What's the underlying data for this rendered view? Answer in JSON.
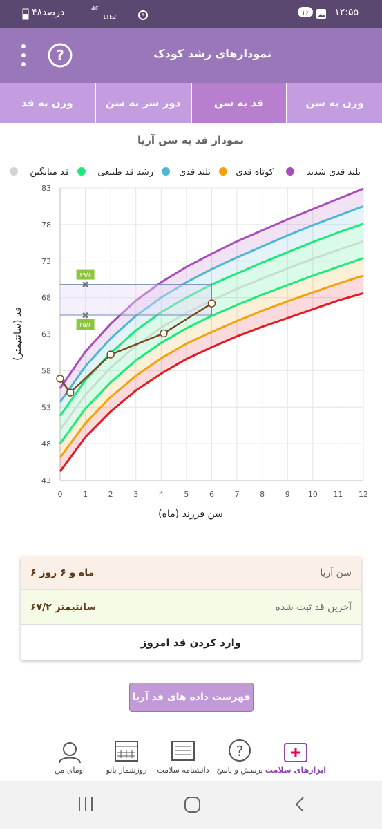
{
  "status_bar": {
    "time": "۱۲:۵۵",
    "badge": "۱۶",
    "battery": "۴۸درصد",
    "network": "4G",
    "lte": "LTE2"
  },
  "app_bar": {
    "title": "نمودارهای رشد کودک"
  },
  "tabs": [
    "وزن به سن",
    "قد به سن",
    "دور سر به سن",
    "وزن به قد"
  ],
  "chart_data": {
    "type": "line",
    "title": "نمودار قد به سن آریا",
    "legend": [
      {
        "name": "بلند قدی شدید",
        "color": "#a74fb9"
      },
      {
        "name": "کوتاه قدی",
        "color": "#f0a30a"
      },
      {
        "name": "بلند قدی",
        "color": "#4fb6d2"
      },
      {
        "name": "رشد قد طبیعی",
        "color": "#1de87a"
      },
      {
        "name": "قد میانگین",
        "color": "#d4d4d4"
      }
    ],
    "x_label": "سن فرزند (ماه)",
    "y_label": "قد (سانتیمتر)",
    "x": [
      0,
      1,
      2,
      3,
      4,
      5,
      6,
      7,
      8,
      9,
      10,
      11,
      12
    ],
    "series": [
      {
        "color": "#e31b23",
        "values": [
          44.2,
          48.9,
          52.4,
          55.3,
          57.6,
          59.6,
          61.2,
          62.7,
          64.0,
          65.2,
          66.4,
          67.6,
          68.6
        ]
      },
      {
        "color": "#f0a30a",
        "values": [
          46.1,
          50.8,
          54.4,
          57.3,
          59.7,
          61.7,
          63.3,
          64.8,
          66.2,
          67.5,
          68.7,
          69.9,
          71.0
        ]
      },
      {
        "color": "#1de87a",
        "values": [
          48.0,
          52.8,
          56.4,
          59.4,
          61.8,
          63.8,
          65.5,
          67.0,
          68.4,
          69.7,
          71.0,
          72.2,
          73.4
        ]
      },
      {
        "color": "#c9dcd0",
        "values": [
          49.9,
          54.7,
          58.4,
          61.4,
          63.9,
          65.9,
          67.6,
          69.2,
          70.6,
          72.0,
          73.3,
          74.5,
          75.7
        ]
      },
      {
        "color": "#1de87a",
        "values": [
          51.8,
          56.7,
          60.4,
          63.5,
          66.0,
          68.0,
          69.8,
          71.3,
          72.8,
          74.2,
          75.6,
          76.9,
          78.1
        ]
      },
      {
        "color": "#4fb6d2",
        "values": [
          53.7,
          58.6,
          62.4,
          65.5,
          68.0,
          70.1,
          71.9,
          73.5,
          75.0,
          76.5,
          77.9,
          79.2,
          80.5
        ]
      },
      {
        "color": "#a74fb9",
        "values": [
          55.6,
          60.6,
          64.4,
          67.6,
          70.1,
          72.2,
          74.0,
          75.7,
          77.2,
          78.7,
          80.1,
          81.5,
          82.9
        ]
      }
    ],
    "measurements": {
      "color": "#7a4a1f",
      "x": [
        0,
        0.4,
        2,
        4.1,
        6
      ],
      "values": [
        56.9,
        55.0,
        60.2,
        63.1,
        67.2
      ]
    },
    "annotations": [
      {
        "x": 1,
        "value": 69.8,
        "label": "۶۹/۸"
      },
      {
        "x": 1,
        "value": 65.6,
        "label": "۶۵/۶"
      }
    ],
    "xlim": [
      0,
      12
    ],
    "xticks": [
      0,
      1,
      2,
      3,
      4,
      5,
      6,
      7,
      8,
      9,
      10,
      11,
      12
    ],
    "ylim": [
      43,
      83
    ],
    "yticks": [
      43,
      48,
      53,
      58,
      63,
      68,
      73,
      78,
      83
    ],
    "grid": true
  },
  "card": {
    "age_label": "سن آریا",
    "age_value": "۶ ماه و ۶ روز",
    "height_label": "آخرین قد ثبت شده",
    "height_value": "۶۷/۲ سانتیمتر",
    "action": "وارد کردن قد امروز"
  },
  "list_button": "فهرست داده های قد آریا",
  "bottom_nav": [
    "ابزارهای سلامت",
    "پرسش و پاسخ",
    "دانشنامه سلامت",
    "روزشمار بانو",
    "اومای من"
  ]
}
